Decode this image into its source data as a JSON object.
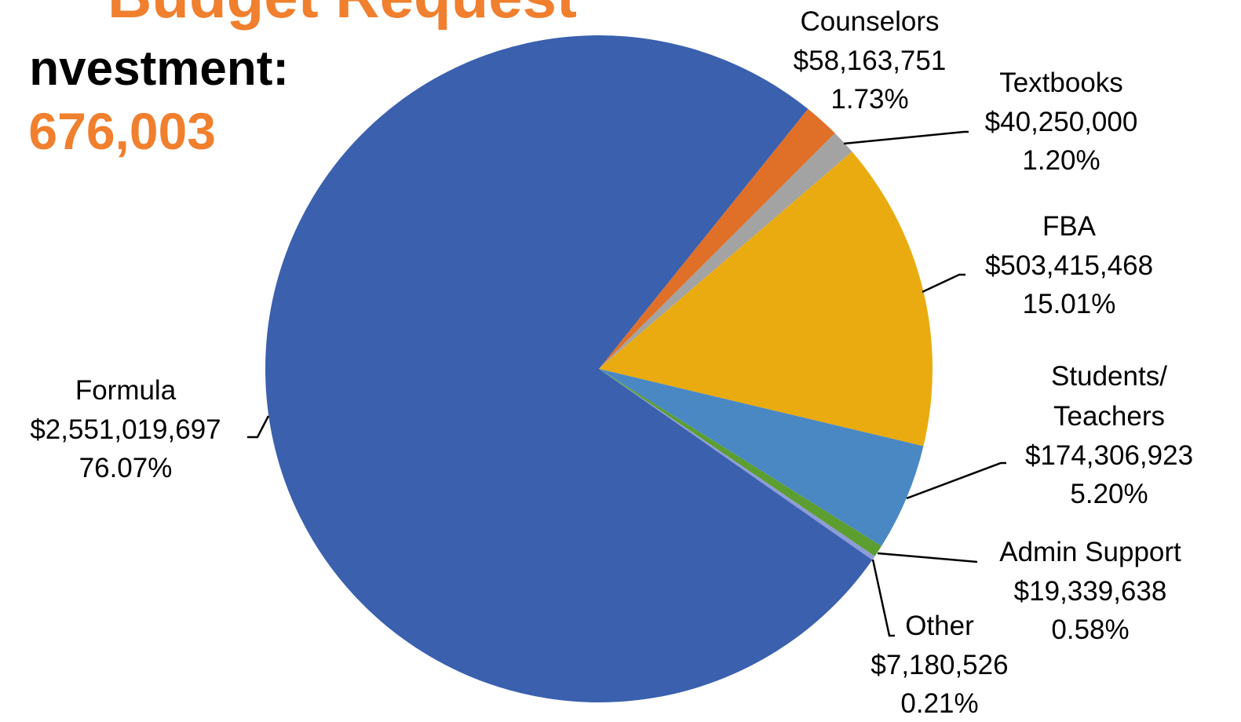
{
  "chart_data": {
    "type": "pie",
    "title": "Budget Request",
    "subtitle": "nvestment:",
    "total_label": "676,003",
    "categories": [
      "Counselors",
      "Textbooks",
      "FBA",
      "Students/ Teachers",
      "Admin Support",
      "Other",
      "Formula"
    ],
    "values": [
      58163751,
      40250000,
      503415468,
      174306923,
      19339638,
      7180526,
      2551019697
    ],
    "value_labels": [
      "$58,163,751",
      "$40,250,000",
      "$503,415,468",
      "$174,306,923",
      "$19,339,638",
      "$7,180,526",
      "$2,551,019,697"
    ],
    "percents": [
      1.73,
      1.2,
      15.01,
      5.2,
      0.58,
      0.21,
      76.07
    ],
    "percent_labels": [
      "1.73%",
      "1.20%",
      "15.01%",
      "5.20%",
      "0.58%",
      "0.21%",
      "76.07%"
    ],
    "colors": [
      "#e07028",
      "#a3a3a3",
      "#e9ab0f",
      "#4a88c4",
      "#5c9e30",
      "#8d9bd8",
      "#3a60ae"
    ]
  }
}
